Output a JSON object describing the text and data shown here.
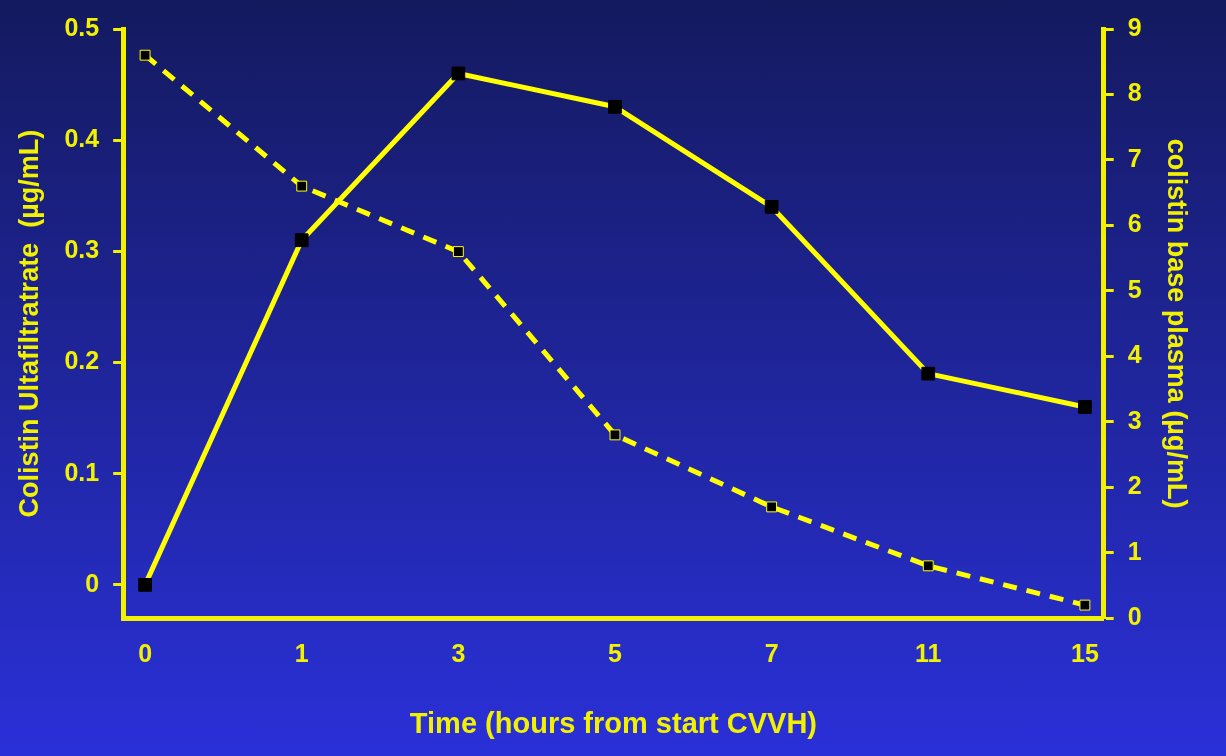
{
  "chart_data": {
    "type": "line",
    "xlabel": "Time (hours from start CVVH)",
    "ylabel": "Colistin Ultafiltratrate  (µg/mL)",
    "y2label": "colistin base plasma (µg/mL)",
    "categories": [
      "0",
      "1",
      "3",
      "5",
      "7",
      "11",
      "15"
    ],
    "series": [
      {
        "color": "#ffff00",
        "values": [
          0,
          0.31,
          0.46,
          0.43,
          0.34,
          0.19,
          0.16
        ],
        "line_style": "solid"
      },
      {
        "color": "#ffff00",
        "values": [
          8.6,
          6.6,
          5.6,
          2.8,
          1.7,
          0.8,
          0.2
        ],
        "axis": "y2",
        "line_style": "dashed"
      }
    ],
    "ylim": [
      -0.03,
      0.5
    ],
    "yticks": [
      0,
      0.1,
      0.2,
      0.3,
      0.4,
      0.5
    ],
    "y2lim": [
      0,
      9
    ],
    "y2ticks": [
      0,
      1,
      2,
      3,
      4,
      5,
      6,
      7,
      8,
      9
    ],
    "marker": "square",
    "grid": false,
    "legend": false
  }
}
